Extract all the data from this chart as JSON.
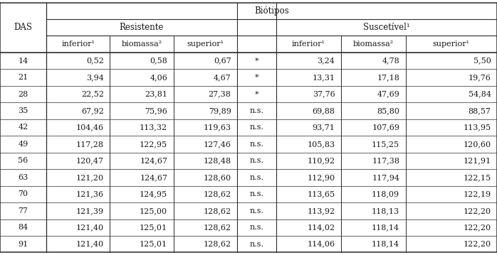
{
  "title": "Biótipos",
  "col_group1": "Resistente",
  "col_group2": "Suscetível¹",
  "row_header": "DAS",
  "sub_headers_resistente": [
    "inferior¹",
    "biomassa²",
    "superior¹"
  ],
  "sub_headers_suscetivel": [
    "inferior¹",
    "biomassa²",
    "superior¹"
  ],
  "rows": [
    [
      14,
      "0,52",
      "0,58",
      "0,67",
      "*",
      "3,24",
      "4,78",
      "5,50"
    ],
    [
      21,
      "3,94",
      "4,06",
      "4,67",
      "*",
      "13,31",
      "17,18",
      "19,76"
    ],
    [
      28,
      "22,52",
      "23,81",
      "27,38",
      "*",
      "37,76",
      "47,69",
      "54,84"
    ],
    [
      35,
      "67,92",
      "75,96",
      "79,89",
      "n.s.",
      "69,88",
      "85,80",
      "88,57"
    ],
    [
      42,
      "104,46",
      "113,32",
      "119,63",
      "n.s.",
      "93,71",
      "107,69",
      "113,95"
    ],
    [
      49,
      "117,28",
      "122,95",
      "127,46",
      "n.s.",
      "105,83",
      "115,25",
      "120,60"
    ],
    [
      56,
      "120,47",
      "124,67",
      "128,48",
      "n.s.",
      "110,92",
      "117,38",
      "121,91"
    ],
    [
      63,
      "121,20",
      "124,67",
      "128,60",
      "n.s.",
      "112,90",
      "117,94",
      "122,15"
    ],
    [
      70,
      "121,36",
      "124,95",
      "128,62",
      "n.s.",
      "113,65",
      "118,09",
      "122,19"
    ],
    [
      77,
      "121,39",
      "125,00",
      "128,62",
      "n.s.",
      "113,92",
      "118,13",
      "122,20"
    ],
    [
      84,
      "121,40",
      "125,01",
      "128,62",
      "n.s.",
      "114,02",
      "118,14",
      "122,20"
    ],
    [
      91,
      "121,40",
      "125,01",
      "128,62",
      "n.s.",
      "114,06",
      "118,14",
      "122,20"
    ]
  ],
  "bg_color": "#ffffff",
  "text_color": "#1a1a1a",
  "line_color": "#2a2a2a",
  "font_size": 8.0,
  "header_font_size": 8.5
}
